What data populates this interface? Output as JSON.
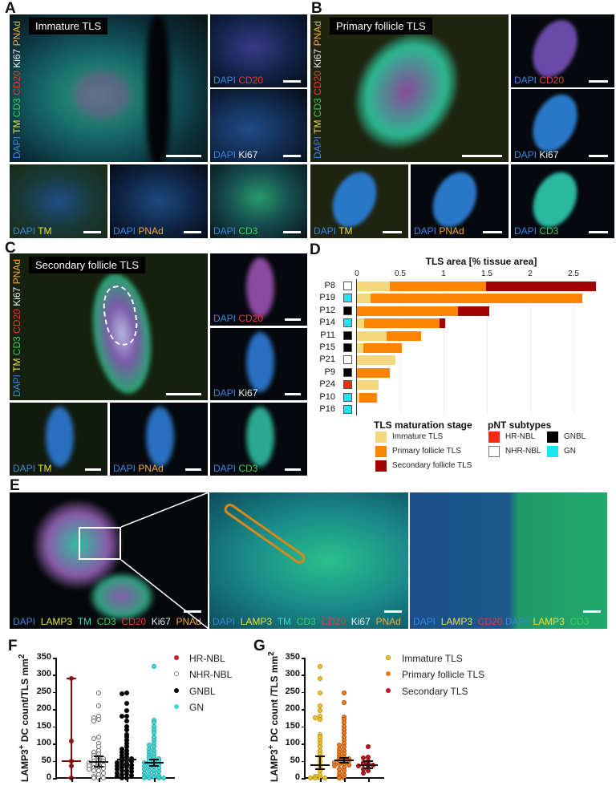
{
  "panels": {
    "A": {
      "letter": "A",
      "title": "Immature TLS",
      "main_channels": [
        "DAPI",
        "TM",
        "CD3",
        "CD20",
        "Ki67",
        "PNAd"
      ],
      "sub_labels": {
        "cd20": [
          "DAPI",
          "CD20"
        ],
        "ki67": [
          "DAPI",
          "Ki67"
        ],
        "tm": [
          "DAPI",
          "TM"
        ],
        "pnad": [
          "DAPI",
          "PNAd"
        ],
        "cd3": [
          "DAPI",
          "CD3"
        ]
      }
    },
    "B": {
      "letter": "B",
      "title": "Primary follicle TLS",
      "main_channels": [
        "DAPI",
        "TM",
        "CD3",
        "CD20",
        "Ki67",
        "PNAd"
      ],
      "sub_labels": {
        "cd20": [
          "DAPI",
          "CD20"
        ],
        "ki67": [
          "DAPI",
          "Ki67"
        ],
        "tm": [
          "DAPI",
          "TM"
        ],
        "pnad": [
          "DAPI",
          "PNAd"
        ],
        "cd3": [
          "DAPI",
          "CD3"
        ]
      }
    },
    "C": {
      "letter": "C",
      "title": "Secondary follicle TLS",
      "main_channels": [
        "DAPI",
        "TM",
        "CD3",
        "CD20",
        "Ki67",
        "PNAd"
      ],
      "sub_labels": {
        "cd20": [
          "DAPI",
          "CD20"
        ],
        "ki67": [
          "DAPI",
          "Ki67"
        ],
        "tm": [
          "DAPI",
          "TM"
        ],
        "pnad": [
          "DAPI",
          "PNAd"
        ],
        "cd3": [
          "DAPI",
          "CD3"
        ]
      }
    },
    "D": {
      "letter": "D"
    },
    "E": {
      "letter": "E",
      "left_labels": [
        "DAPI",
        "LAMP3",
        "TM",
        "CD3",
        "CD20",
        "Ki67",
        "PNAd"
      ],
      "mid_labels": [
        "DAPI",
        "LAMP3",
        "TM",
        "CD3",
        "CD20",
        "Ki67",
        "PNAd"
      ],
      "right_labels": [
        "DAPI",
        "LAMP3",
        "CD20",
        "DAPI",
        "LAMP3",
        "CD3"
      ]
    },
    "F": {
      "letter": "F"
    },
    "G": {
      "letter": "G"
    }
  },
  "colors": {
    "immature": "#f5d77e",
    "primary": "#ff8400",
    "secondary": "#a30000",
    "hr_nbl": "#f22a12",
    "nhr_nbl": "#ffffff",
    "gnbl": "#000000",
    "gn": "#19e6f0",
    "f_hr": "#c81d25",
    "f_nhr": "#ffffff",
    "f_gnbl": "#000000",
    "f_gn": "#3fd8d8",
    "g_immature": "#f0c419",
    "g_primary": "#f07d1a",
    "g_secondary": "#c01520"
  },
  "chart_data": [
    {
      "type": "bar",
      "orientation": "horizontal-stacked",
      "title": "TLS area [% tissue area]",
      "xlabel": "TLS area [% tissue area]",
      "xticks": [
        "0",
        "0.5",
        "1",
        "1.5",
        "2",
        "2.5"
      ],
      "xlim": [
        0,
        2.8
      ],
      "categories": [
        "P8",
        "P19",
        "P12",
        "P14",
        "P11",
        "P15",
        "P21",
        "P9",
        "P24",
        "P10",
        "P16"
      ],
      "subtypes": [
        "NHR-NBL",
        "GN",
        "GNBL",
        "GN",
        "GNBL",
        "GNBL",
        "NHR-NBL",
        "GNBL",
        "HR-NBL",
        "GN",
        "GN"
      ],
      "series": [
        {
          "name": "Immature TLS",
          "values": [
            0.38,
            0.16,
            0.0,
            0.08,
            0.34,
            0.07,
            0.44,
            0.0,
            0.25,
            0.03,
            0.0
          ]
        },
        {
          "name": "Primary follicle TLS",
          "values": [
            1.11,
            2.44,
            1.17,
            0.87,
            0.4,
            0.45,
            0.0,
            0.38,
            0.0,
            0.2,
            0.0
          ]
        },
        {
          "name": "Secondary follicle TLS",
          "values": [
            1.27,
            0.0,
            0.36,
            0.07,
            0.0,
            0.0,
            0.0,
            0.0,
            0.0,
            0.0,
            0.0
          ]
        }
      ],
      "legend": {
        "stage_title": "TLS maturation stage",
        "stages": [
          "Immature TLS",
          "Primary follicle TLS",
          "Secondary follicle TLS"
        ],
        "subtype_title": "pNT subtypes",
        "subtypes": [
          "HR-NBL",
          "NHR-NBL",
          "GNBL",
          "GN"
        ]
      }
    },
    {
      "type": "scatter",
      "panel": "F",
      "ylabel": "LAMP3+ DC count/TLS mm2",
      "yticks": [
        "0",
        "50",
        "100",
        "150",
        "200",
        "250",
        "300",
        "350"
      ],
      "ylim": [
        0,
        350
      ],
      "categories": [
        "HR-NBL",
        "NHR-NBL",
        "GNBL",
        "GN"
      ],
      "medians": [
        48,
        47,
        53,
        44
      ],
      "ci": [
        [
          0,
          290
        ],
        [
          33,
          63
        ],
        [
          38,
          54
        ],
        [
          35,
          53
        ]
      ],
      "series": [
        {
          "name": "HR-NBL",
          "values": [
            290,
            108,
            49,
            35,
            0
          ]
        },
        {
          "name": "NHR-NBL",
          "values": [
            248,
            210,
            180,
            175,
            170,
            165,
            120,
            115,
            100,
            90,
            80,
            75,
            70,
            65,
            60,
            58,
            55,
            52,
            50,
            48,
            45,
            42,
            40,
            38,
            35,
            32,
            30,
            28,
            25,
            22,
            20,
            15,
            10,
            5,
            0,
            0,
            0
          ]
        },
        {
          "name": "GNBL",
          "values": [
            247,
            245,
            218,
            195,
            180,
            180,
            165,
            150,
            140,
            125,
            118,
            110,
            100,
            90,
            85,
            80,
            75,
            70,
            65,
            60,
            58,
            55,
            52,
            50,
            48,
            45,
            42,
            40,
            38,
            35,
            32,
            30,
            28,
            25,
            22,
            20,
            18,
            15,
            12,
            10,
            8,
            5,
            0,
            0
          ]
        },
        {
          "name": "GN",
          "values": [
            325,
            168,
            160,
            150,
            140,
            130,
            120,
            110,
            100,
            95,
            90,
            85,
            80,
            75,
            70,
            65,
            60,
            58,
            55,
            52,
            50,
            48,
            45,
            42,
            40,
            38,
            35,
            32,
            30,
            28,
            25,
            22,
            20,
            18,
            15,
            12,
            10,
            8,
            5,
            3,
            0,
            0,
            0,
            0
          ]
        }
      ],
      "legend": [
        "HR-NBL",
        "NHR-NBL",
        "GNBL",
        "GN"
      ]
    },
    {
      "type": "scatter",
      "panel": "G",
      "ylabel": "LAMP3+ DC count /TLS mm2",
      "yticks": [
        "0",
        "50",
        "100",
        "150",
        "200",
        "250",
        "300",
        "350"
      ],
      "ylim": [
        0,
        350
      ],
      "categories": [
        "Immature TLS",
        "Primary follicle TLS",
        "Secondary TLS"
      ],
      "medians": [
        38,
        52,
        38
      ],
      "ci": [
        [
          25,
          63
        ],
        [
          45,
          58
        ],
        [
          28,
          50
        ]
      ],
      "series": [
        {
          "name": "Immature TLS",
          "values": [
            325,
            290,
            248,
            210,
            195,
            180,
            175,
            170,
            125,
            118,
            110,
            100,
            90,
            80,
            70,
            60,
            50,
            40,
            30,
            20,
            10,
            5,
            0,
            0,
            0,
            0
          ]
        },
        {
          "name": "Primary follicle TLS",
          "values": [
            248,
            220,
            178,
            170,
            160,
            150,
            140,
            130,
            120,
            110,
            100,
            95,
            90,
            85,
            80,
            75,
            70,
            65,
            60,
            58,
            55,
            52,
            50,
            48,
            45,
            42,
            40,
            38,
            35,
            30,
            25,
            20,
            15,
            10,
            5,
            0,
            0
          ]
        },
        {
          "name": "Secondary TLS",
          "values": [
            90,
            60,
            58,
            50,
            45,
            42,
            40,
            38,
            35,
            30,
            25,
            22,
            15
          ]
        }
      ],
      "legend": [
        "Immature TLS",
        "Primary follicle TLS",
        "Secondary TLS"
      ]
    }
  ]
}
